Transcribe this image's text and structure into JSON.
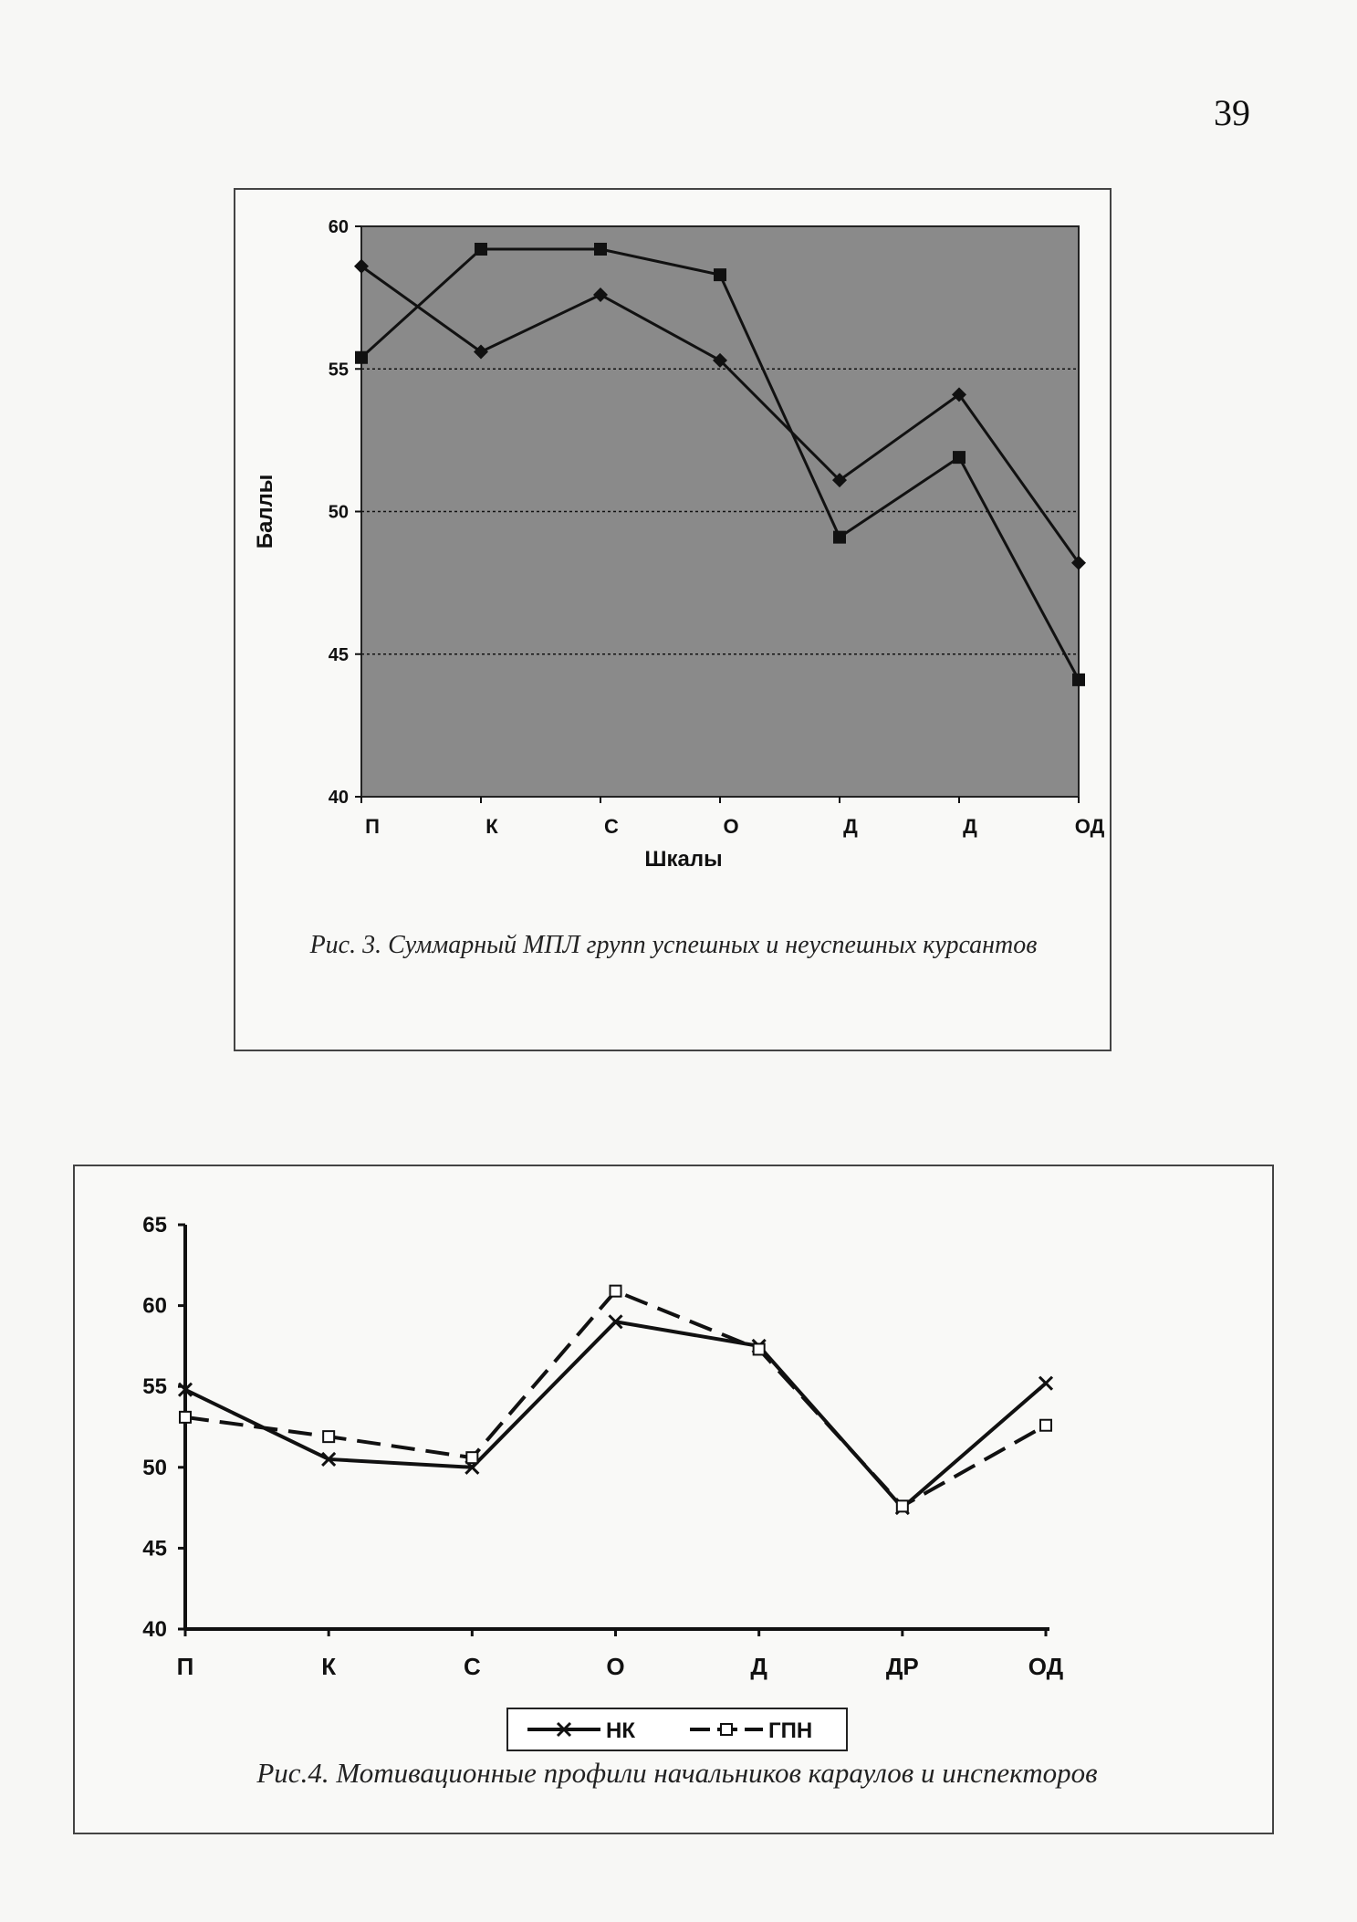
{
  "page": {
    "number": "39"
  },
  "chart_data": [
    {
      "type": "line",
      "categories": [
        "П",
        "К",
        "С",
        "О",
        "Д",
        "Д",
        "ОД"
      ],
      "ylabel": "Баллы",
      "xlabel": "Шкалы",
      "ylim": [
        40,
        60
      ],
      "yticks": [
        40,
        45,
        50,
        55,
        60
      ],
      "grid": true,
      "series": [
        {
          "marker": "diamond",
          "values": [
            58.6,
            55.6,
            57.6,
            55.3,
            51.1,
            54.1,
            48.2
          ]
        },
        {
          "marker": "square",
          "values": [
            55.4,
            59.2,
            59.2,
            58.3,
            49.1,
            51.9,
            44.1
          ]
        }
      ],
      "caption": "Рис. 3. Суммарный МПЛ групп успешных и неуспешных курсантов",
      "colors": {
        "plot_background": "#8a8a8a",
        "line": "#111111"
      }
    },
    {
      "type": "line",
      "categories": [
        "П",
        "К",
        "С",
        "О",
        "Д",
        "ДР",
        "ОД"
      ],
      "ylim": [
        40,
        65
      ],
      "yticks": [
        40,
        45,
        50,
        55,
        60,
        65
      ],
      "grid": false,
      "legend_position": "bottom",
      "series": [
        {
          "name": "НК",
          "marker": "x",
          "dash": "solid",
          "values": [
            54.8,
            50.5,
            50.0,
            59.0,
            57.5,
            47.5,
            55.2
          ]
        },
        {
          "name": "ГПН",
          "marker": "open-square",
          "dash": "dashed",
          "values": [
            53.1,
            51.9,
            50.6,
            60.9,
            57.3,
            47.6,
            52.6
          ]
        }
      ],
      "caption": "Рис.4. Мотивационные профили начальников караулов и инспекторов",
      "colors": {
        "line": "#111111"
      }
    }
  ]
}
